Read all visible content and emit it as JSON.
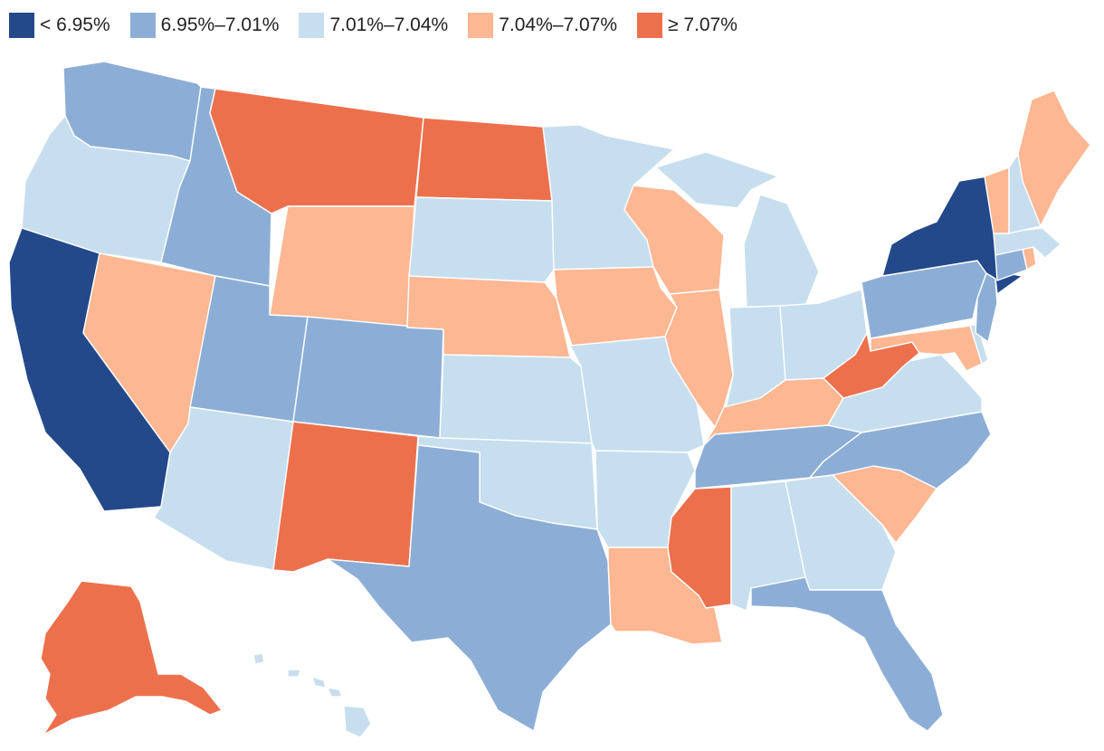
{
  "legend": [
    {
      "label": "< 6.95%",
      "color": "#23498b"
    },
    {
      "label": "6.95%–7.01%",
      "color": "#8caed6"
    },
    {
      "label": "7.01%–7.04%",
      "color": "#c7deee"
    },
    {
      "label": "7.04%–7.07%",
      "color": "#fdb792"
    },
    {
      "label": "≥ 7.07%",
      "color": "#ed704d"
    }
  ],
  "states": {
    "WA": 1,
    "OR": 2,
    "CA": 0,
    "NV": 3,
    "ID": 1,
    "MT": 4,
    "WY": 3,
    "UT": 1,
    "AZ": 2,
    "CO": 1,
    "NM": 4,
    "ND": 4,
    "SD": 2,
    "NE": 3,
    "KS": 2,
    "OK": 2,
    "TX": 1,
    "MN": 2,
    "IA": 3,
    "MO": 2,
    "AR": 2,
    "LA": 3,
    "WI": 3,
    "IL": 3,
    "MI": 2,
    "IN": 2,
    "OH": 2,
    "KY": 3,
    "TN": 1,
    "MS": 4,
    "AL": 2,
    "GA": 2,
    "FL": 1,
    "SC": 3,
    "NC": 1,
    "VA": 2,
    "WV": 4,
    "MD": 3,
    "DE": 2,
    "PA": 1,
    "NJ": 1,
    "NY": 0,
    "CT": 1,
    "RI": 3,
    "MA": 2,
    "VT": 3,
    "NH": 2,
    "ME": 3,
    "AK": 4,
    "HI": 2
  }
}
